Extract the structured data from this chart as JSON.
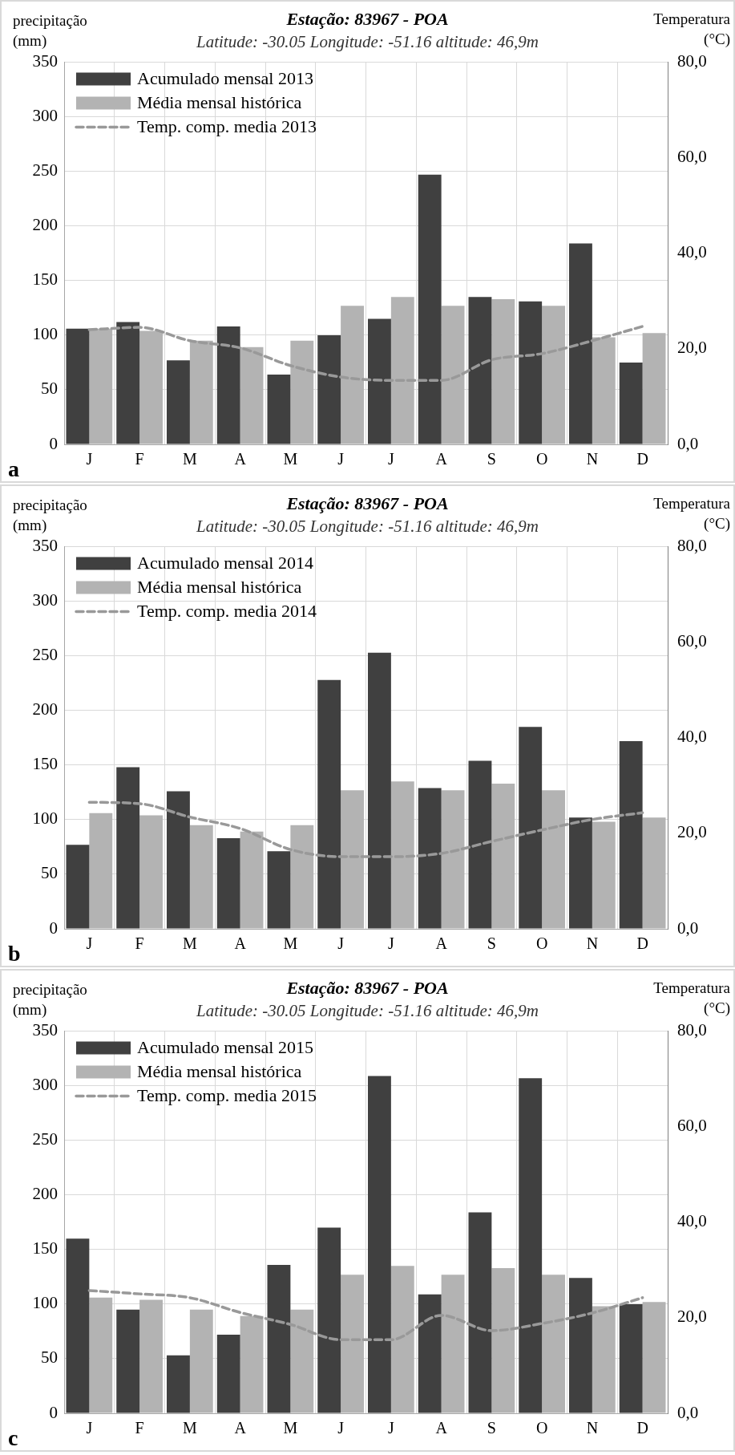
{
  "chart_data": [
    {
      "type": "bar",
      "title": "Estação: 83967 - POA",
      "subtitle": "Latitude: -30.05 Longitude: -51.16 altitude: 46,9m",
      "ylabel": "precipitação (mm)",
      "y2label": "Temperatura (°C)",
      "categories": [
        "J",
        "F",
        "M",
        "A",
        "M",
        "J",
        "J",
        "A",
        "S",
        "O",
        "N",
        "D"
      ],
      "series": [
        {
          "name": "Acumulado mensal 2013",
          "color": "#404040",
          "values": [
            106,
            112,
            77,
            108,
            64,
            100,
            115,
            247,
            135,
            131,
            184,
            75
          ]
        },
        {
          "name": "Média mensal histórica",
          "color": "#b3b3b3",
          "values": [
            106,
            104,
            95,
            89,
            95,
            127,
            135,
            127,
            133,
            127,
            98,
            102
          ]
        },
        {
          "name": "Temp. comp. media 2013",
          "type": "line",
          "axis": "y2",
          "color": "#999999",
          "values": [
            24.0,
            24.5,
            21.7,
            20.2,
            16.5,
            14.1,
            13.4,
            13.4,
            17.7,
            19.0,
            21.7,
            24.7
          ]
        }
      ],
      "ylim": [
        0,
        350
      ],
      "yticks": [
        0,
        50,
        100,
        150,
        200,
        250,
        300,
        350
      ],
      "y2lim": [
        0,
        80
      ],
      "y2ticks": [
        {
          "value": 0,
          "label": "0,0"
        },
        {
          "value": 20,
          "label": "20,0"
        },
        {
          "value": 40,
          "label": "40,0"
        },
        {
          "value": 60,
          "label": "60,0"
        },
        {
          "value": 80,
          "label": "80,0"
        }
      ],
      "grid": true,
      "legend": "top left",
      "marker": "none",
      "line_style": "dashed",
      "annotations": [
        "a"
      ]
    },
    {
      "type": "bar",
      "title": "Estação: 83967 - POA",
      "subtitle": "Latitude: -30.05 Longitude: -51.16 altitude: 46,9m",
      "ylabel": "precipitação (mm)",
      "y2label": "Temperatura (°C)",
      "categories": [
        "J",
        "F",
        "M",
        "A",
        "M",
        "J",
        "J",
        "A",
        "S",
        "O",
        "N",
        "D"
      ],
      "series": [
        {
          "name": "Acumulado mensal 2014",
          "color": "#404040",
          "values": [
            77,
            148,
            126,
            83,
            71,
            228,
            253,
            129,
            154,
            185,
            102,
            172
          ]
        },
        {
          "name": "Média mensal histórica",
          "color": "#b3b3b3",
          "values": [
            106,
            104,
            95,
            89,
            95,
            127,
            135,
            127,
            133,
            127,
            98,
            102
          ]
        },
        {
          "name": "Temp. comp. media 2014",
          "type": "line",
          "axis": "y2",
          "color": "#999999",
          "values": [
            26.5,
            26.2,
            23.4,
            21.0,
            16.6,
            15.1,
            15.1,
            15.8,
            18.3,
            20.7,
            22.9,
            24.3
          ]
        }
      ],
      "ylim": [
        0,
        350
      ],
      "yticks": [
        0,
        50,
        100,
        150,
        200,
        250,
        300,
        350
      ],
      "y2lim": [
        0,
        80
      ],
      "y2ticks": [
        {
          "value": 0,
          "label": "0,0"
        },
        {
          "value": 20,
          "label": "20,0"
        },
        {
          "value": 40,
          "label": "40,0"
        },
        {
          "value": 60,
          "label": "60,0"
        },
        {
          "value": 80,
          "label": "80,0"
        }
      ],
      "grid": true,
      "legend": "top left",
      "marker": "none",
      "line_style": "dashed",
      "annotations": [
        "b"
      ]
    },
    {
      "type": "bar",
      "title": "Estação: 83967 - POA",
      "subtitle": "Latitude: -30.05 Longitude: -51.16 altitude: 46,9m",
      "ylabel": "precipitação (mm)",
      "y2label": "Temperatura (°C)",
      "categories": [
        "J",
        "F",
        "M",
        "A",
        "M",
        "J",
        "J",
        "A",
        "S",
        "O",
        "N",
        "D"
      ],
      "series": [
        {
          "name": "Acumulado mensal 2015",
          "color": "#404040",
          "values": [
            160,
            95,
            53,
            72,
            136,
            170,
            309,
            109,
            184,
            307,
            124,
            100
          ]
        },
        {
          "name": "Média mensal histórica",
          "color": "#b3b3b3",
          "values": [
            106,
            104,
            95,
            89,
            95,
            127,
            135,
            127,
            133,
            127,
            98,
            102
          ]
        },
        {
          "name": "Temp. comp. media 2015",
          "type": "line",
          "axis": "y2",
          "color": "#999999",
          "values": [
            25.7,
            25.0,
            24.2,
            21.1,
            18.6,
            15.4,
            15.4,
            20.5,
            17.3,
            18.8,
            21.0,
            24.2
          ]
        }
      ],
      "ylim": [
        0,
        350
      ],
      "yticks": [
        0,
        50,
        100,
        150,
        200,
        250,
        300,
        350
      ],
      "y2lim": [
        0,
        80
      ],
      "y2ticks": [
        {
          "value": 0,
          "label": "0,0"
        },
        {
          "value": 20,
          "label": "20,0"
        },
        {
          "value": 40,
          "label": "40,0"
        },
        {
          "value": 60,
          "label": "60,0"
        },
        {
          "value": 80,
          "label": "80,0"
        }
      ],
      "grid": true,
      "legend": "top left",
      "marker": "none",
      "line_style": "dashed",
      "annotations": [
        "c"
      ]
    }
  ]
}
